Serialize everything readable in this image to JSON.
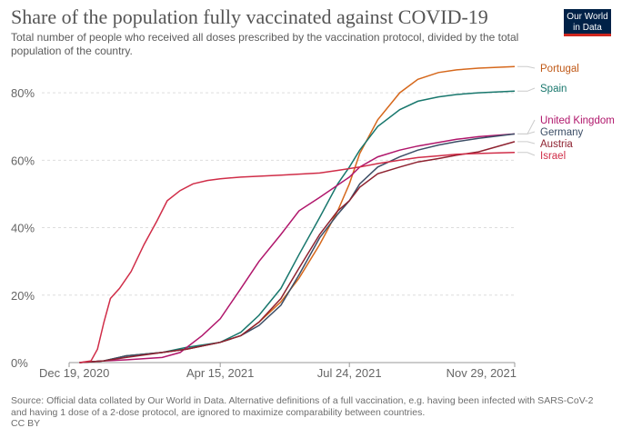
{
  "header": {
    "title": "Share of the population fully vaccinated against COVID-19",
    "subtitle": "Total number of people who received all doses prescribed by the vaccination protocol, divided by the total population of the country.",
    "logo_line1": "Our World",
    "logo_line2": "in Data"
  },
  "footer": {
    "source": "Source: Official data collated by Our World in Data. Alternative definitions of a full vaccination, e.g. having been infected with SARS-CoV-2 and having 1 dose of a 2-dose protocol, are ignored to maximize comparability between countries.",
    "license": "CC BY"
  },
  "chart_data": {
    "type": "line",
    "title": "Share of the population fully vaccinated against COVID-19",
    "xlabel": "",
    "ylabel": "",
    "x_tick_labels": [
      "Dec 19, 2020",
      "Apr 15, 2021",
      "Jul 24, 2021",
      "Nov 29, 2021"
    ],
    "x_tick_dates": [
      "2020-12-19",
      "2021-04-15",
      "2021-07-24",
      "2021-11-29"
    ],
    "y_tick_labels": [
      "0%",
      "20%",
      "40%",
      "60%",
      "80%"
    ],
    "y_ticks": [
      0,
      20,
      40,
      60,
      80
    ],
    "xlim": [
      "2020-12-19",
      "2021-11-29"
    ],
    "ylim": [
      0,
      90
    ],
    "grid": "horizontal dashed",
    "legend": "right-side labels at line ends",
    "series": [
      {
        "name": "Portugal",
        "color": "#c15065",
        "line_color": "#d6681c",
        "label_color": "#c05917",
        "points": [
          [
            "2020-12-27",
            0
          ],
          [
            "2021-01-15",
            0.5
          ],
          [
            "2021-02-01",
            2
          ],
          [
            "2021-03-01",
            3
          ],
          [
            "2021-03-20",
            4
          ],
          [
            "2021-04-15",
            6
          ],
          [
            "2021-05-01",
            8
          ],
          [
            "2021-05-15",
            12
          ],
          [
            "2021-06-01",
            18
          ],
          [
            "2021-06-15",
            25
          ],
          [
            "2021-07-01",
            35
          ],
          [
            "2021-07-15",
            45
          ],
          [
            "2021-07-24",
            53
          ],
          [
            "2021-08-01",
            62
          ],
          [
            "2021-08-15",
            72
          ],
          [
            "2021-09-01",
            80
          ],
          [
            "2021-09-15",
            84
          ],
          [
            "2021-10-01",
            86
          ],
          [
            "2021-10-15",
            86.8
          ],
          [
            "2021-11-01",
            87.3
          ],
          [
            "2021-11-29",
            87.8
          ]
        ]
      },
      {
        "name": "Spain",
        "line_color": "#18776d",
        "label_color": "#18776d",
        "points": [
          [
            "2020-12-27",
            0
          ],
          [
            "2021-01-15",
            0.5
          ],
          [
            "2021-02-01",
            2
          ],
          [
            "2021-03-01",
            3
          ],
          [
            "2021-03-20",
            4.5
          ],
          [
            "2021-04-15",
            6
          ],
          [
            "2021-05-01",
            9
          ],
          [
            "2021-05-15",
            14
          ],
          [
            "2021-06-01",
            22
          ],
          [
            "2021-06-15",
            32
          ],
          [
            "2021-07-01",
            43
          ],
          [
            "2021-07-15",
            53
          ],
          [
            "2021-07-24",
            58
          ],
          [
            "2021-08-01",
            63
          ],
          [
            "2021-08-15",
            70
          ],
          [
            "2021-09-01",
            75
          ],
          [
            "2021-09-15",
            77.5
          ],
          [
            "2021-10-01",
            78.8
          ],
          [
            "2021-10-15",
            79.5
          ],
          [
            "2021-11-01",
            80
          ],
          [
            "2021-11-29",
            80.5
          ]
        ]
      },
      {
        "name": "United Kingdom",
        "line_color": "#b0166b",
        "label_color": "#b0166b",
        "points": [
          [
            "2020-12-27",
            0
          ],
          [
            "2021-01-15",
            0.5
          ],
          [
            "2021-02-01",
            0.8
          ],
          [
            "2021-03-01",
            1.5
          ],
          [
            "2021-03-15",
            3
          ],
          [
            "2021-04-01",
            8
          ],
          [
            "2021-04-15",
            13
          ],
          [
            "2021-05-01",
            22
          ],
          [
            "2021-05-15",
            30
          ],
          [
            "2021-06-01",
            38
          ],
          [
            "2021-06-15",
            45
          ],
          [
            "2021-07-01",
            49
          ],
          [
            "2021-07-24",
            55
          ],
          [
            "2021-08-01",
            58
          ],
          [
            "2021-08-15",
            61
          ],
          [
            "2021-09-01",
            63
          ],
          [
            "2021-09-15",
            64.2
          ],
          [
            "2021-10-01",
            65.3
          ],
          [
            "2021-10-15",
            66.2
          ],
          [
            "2021-11-01",
            67
          ],
          [
            "2021-11-29",
            67.8
          ]
        ]
      },
      {
        "name": "Germany",
        "line_color": "#3c4e66",
        "label_color": "#3c4e66",
        "points": [
          [
            "2020-12-27",
            0
          ],
          [
            "2021-01-15",
            0.5
          ],
          [
            "2021-02-01",
            2
          ],
          [
            "2021-03-01",
            3
          ],
          [
            "2021-03-20",
            4
          ],
          [
            "2021-04-15",
            6
          ],
          [
            "2021-05-01",
            8
          ],
          [
            "2021-05-15",
            11
          ],
          [
            "2021-06-01",
            17
          ],
          [
            "2021-06-15",
            26
          ],
          [
            "2021-07-01",
            37
          ],
          [
            "2021-07-15",
            44
          ],
          [
            "2021-07-24",
            48
          ],
          [
            "2021-08-01",
            53
          ],
          [
            "2021-08-15",
            58
          ],
          [
            "2021-09-01",
            61
          ],
          [
            "2021-09-15",
            63
          ],
          [
            "2021-10-01",
            64.5
          ],
          [
            "2021-10-15",
            65.5
          ],
          [
            "2021-11-01",
            66.5
          ],
          [
            "2021-11-29",
            67.8
          ]
        ]
      },
      {
        "name": "Austria",
        "line_color": "#8e2230",
        "label_color": "#8e2230",
        "points": [
          [
            "2020-12-27",
            0
          ],
          [
            "2021-01-15",
            0.5
          ],
          [
            "2021-02-01",
            1.5
          ],
          [
            "2021-03-01",
            3
          ],
          [
            "2021-03-20",
            4
          ],
          [
            "2021-04-15",
            6
          ],
          [
            "2021-05-01",
            8
          ],
          [
            "2021-05-15",
            12
          ],
          [
            "2021-06-01",
            19
          ],
          [
            "2021-06-15",
            28
          ],
          [
            "2021-07-01",
            38
          ],
          [
            "2021-07-15",
            45
          ],
          [
            "2021-07-24",
            48
          ],
          [
            "2021-08-01",
            52
          ],
          [
            "2021-08-15",
            56
          ],
          [
            "2021-09-01",
            58
          ],
          [
            "2021-09-15",
            59.5
          ],
          [
            "2021-10-01",
            60.5
          ],
          [
            "2021-10-15",
            61.5
          ],
          [
            "2021-11-01",
            62.5
          ],
          [
            "2021-11-29",
            65.5
          ]
        ]
      },
      {
        "name": "Israel",
        "line_color": "#d02d48",
        "label_color": "#d02d48",
        "points": [
          [
            "2020-12-27",
            0
          ],
          [
            "2021-01-05",
            0.5
          ],
          [
            "2021-01-10",
            4
          ],
          [
            "2021-01-15",
            12
          ],
          [
            "2021-01-20",
            19
          ],
          [
            "2021-01-27",
            22
          ],
          [
            "2021-02-05",
            27
          ],
          [
            "2021-02-15",
            35
          ],
          [
            "2021-02-25",
            42
          ],
          [
            "2021-03-05",
            48
          ],
          [
            "2021-03-15",
            51
          ],
          [
            "2021-03-25",
            53
          ],
          [
            "2021-04-05",
            54
          ],
          [
            "2021-04-15",
            54.5
          ],
          [
            "2021-05-01",
            55
          ],
          [
            "2021-06-01",
            55.6
          ],
          [
            "2021-07-01",
            56.2
          ],
          [
            "2021-07-15",
            57
          ],
          [
            "2021-08-01",
            58
          ],
          [
            "2021-08-15",
            59
          ],
          [
            "2021-09-01",
            60
          ],
          [
            "2021-09-15",
            60.8
          ],
          [
            "2021-10-01",
            61.3
          ],
          [
            "2021-10-15",
            61.8
          ],
          [
            "2021-11-01",
            62
          ],
          [
            "2021-11-29",
            62.3
          ]
        ]
      }
    ]
  }
}
